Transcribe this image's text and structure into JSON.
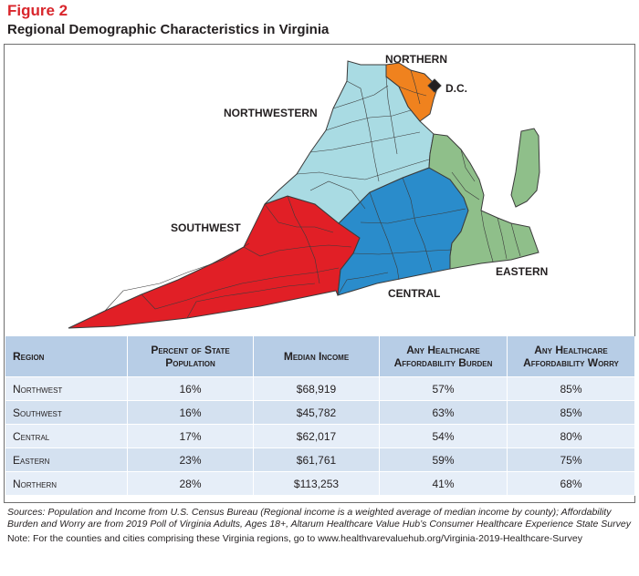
{
  "figure": {
    "label": "Figure 2",
    "title": "Regional Demographic Characteristics in Virginia"
  },
  "map": {
    "labels": {
      "northern": "NORTHERN",
      "dc": "D.C.",
      "northwestern": "NORTHWESTERN",
      "southwest": "SOUTHWEST",
      "central": "CENTRAL",
      "eastern": "EASTERN"
    },
    "colors": {
      "northern": "#f0821e",
      "dc": "#231f20",
      "northwestern": "#a9dbe3",
      "southwest": "#e11f26",
      "central": "#2a8ccb",
      "eastern": "#8fbf8a",
      "border": "#3b3b3b"
    }
  },
  "table": {
    "headers": {
      "region": "Region",
      "percent": "Percent of State Population",
      "income": "Median Income",
      "burden": "Any Healthcare Affordability Burden",
      "worry": "Any Healthcare Affordability Worry"
    },
    "rows": [
      {
        "region": "Northwest",
        "percent": "16%",
        "income": "$68,919",
        "burden": "57%",
        "worry": "85%"
      },
      {
        "region": "Southwest",
        "percent": "16%",
        "income": "$45,782",
        "burden": "63%",
        "worry": "85%"
      },
      {
        "region": "Central",
        "percent": "17%",
        "income": "$62,017",
        "burden": "54%",
        "worry": "80%"
      },
      {
        "region": "Eastern",
        "percent": "23%",
        "income": "$61,761",
        "burden": "59%",
        "worry": "75%"
      },
      {
        "region": "Northern",
        "percent": "28%",
        "income": "$113,253",
        "burden": "41%",
        "worry": "68%"
      }
    ],
    "colors": {
      "header": "#b7cde6",
      "row_light": "#e6eef8",
      "row_dark": "#d4e1f0"
    }
  },
  "notes": {
    "sources": "Sources: Population and Income from U.S. Census Bureau (Regional income is a weighted average of median income by county); Affordability Burden and Worry are from 2019 Poll of Virginia Adults, Ages 18+, Altarum Healthcare Value Hub’s Consumer Healthcare Experience State Survey",
    "note": "Note: For the counties and cities comprising these Virginia regions, go to www.healthvarevaluehub.org/Virginia-2019-Healthcare-Survey"
  }
}
